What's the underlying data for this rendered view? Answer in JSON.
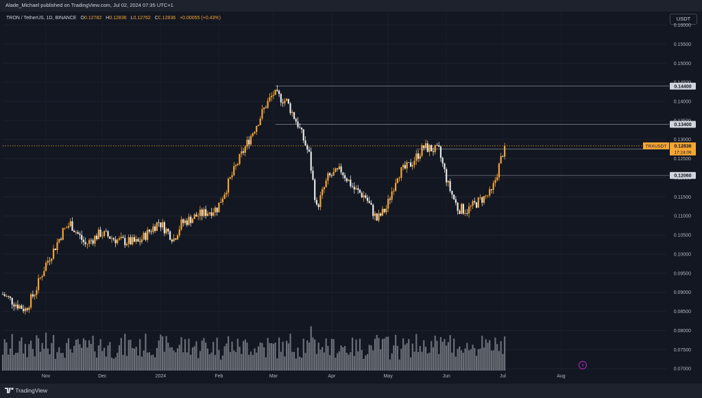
{
  "header": {
    "publisher_line": "Alade_Michael published on TradingView.com, Jul 02, 2024 07:35 UTC+1"
  },
  "legend": {
    "symbol": "TRON / TetherUS, 1D, BINANCE",
    "o_label": "O",
    "o_value": "0.12782",
    "h_label": "H",
    "h_value": "0.12836",
    "l_label": "L",
    "l_value": "0.12762",
    "c_label": "C",
    "c_value": "0.12836",
    "change": "+0.00055 (+0.43%)"
  },
  "currency_button": "USDT",
  "footer": {
    "brand": "TradingView"
  },
  "colors": {
    "background": "#131722",
    "up": "#f7a634",
    "down": "#e8e8e8",
    "volume": "#8a8d96",
    "level_line": "#787b86",
    "price_line": "#f7a634"
  },
  "chart_data": {
    "type": "candlestick",
    "symbol": "TRXUSDT",
    "timeframe": "1D",
    "exchange": "BINANCE",
    "y_axis": {
      "range": [
        0.0695,
        0.1635
      ],
      "ticks": [
        "0.16000",
        "0.15500",
        "0.15000",
        "0.14500",
        "0.14000",
        "0.13500",
        "0.13000",
        "0.12500",
        "0.12000",
        "0.11500",
        "0.11000",
        "0.10500",
        "0.10000",
        "0.09500",
        "0.09000",
        "0.08500",
        "0.08000",
        "0.07500",
        "0.07000"
      ]
    },
    "x_axis": {
      "range": [
        "2023-10-09",
        "2024-09-26"
      ],
      "ticks": [
        {
          "date": "2023-11-01",
          "label": "Nov"
        },
        {
          "date": "2023-12-01",
          "label": "Dec"
        },
        {
          "date": "2024-01-01",
          "label": "2024"
        },
        {
          "date": "2024-02-01",
          "label": "Feb"
        },
        {
          "date": "2024-03-01",
          "label": "Mar"
        },
        {
          "date": "2024-04-01",
          "label": "Apr"
        },
        {
          "date": "2024-05-01",
          "label": "May"
        },
        {
          "date": "2024-06-01",
          "label": "Jun"
        },
        {
          "date": "2024-07-01",
          "label": "Jul"
        },
        {
          "date": "2024-08-01",
          "label": "Aug"
        }
      ]
    },
    "series_start": "2023-10-09",
    "series_end": "2024-07-02",
    "close_path": [
      {
        "date": "2023-10-09",
        "close": 0.0895
      },
      {
        "date": "2023-10-16",
        "close": 0.087
      },
      {
        "date": "2023-10-21",
        "close": 0.0855
      },
      {
        "date": "2023-10-26",
        "close": 0.09
      },
      {
        "date": "2023-11-01",
        "close": 0.0975
      },
      {
        "date": "2023-11-05",
        "close": 0.101
      },
      {
        "date": "2023-11-10",
        "close": 0.106
      },
      {
        "date": "2023-11-14",
        "close": 0.108
      },
      {
        "date": "2023-11-22",
        "close": 0.1025
      },
      {
        "date": "2023-11-30",
        "close": 0.1055
      },
      {
        "date": "2023-12-10",
        "close": 0.1035
      },
      {
        "date": "2023-12-20",
        "close": 0.103
      },
      {
        "date": "2023-12-31",
        "close": 0.1085
      },
      {
        "date": "2024-01-08",
        "close": 0.104
      },
      {
        "date": "2024-01-12",
        "close": 0.108
      },
      {
        "date": "2024-01-20",
        "close": 0.11
      },
      {
        "date": "2024-01-31",
        "close": 0.112
      },
      {
        "date": "2024-02-12",
        "close": 0.125
      },
      {
        "date": "2024-02-20",
        "close": 0.133
      },
      {
        "date": "2024-02-26",
        "close": 0.139
      },
      {
        "date": "2024-03-01",
        "close": 0.142
      },
      {
        "date": "2024-03-08",
        "close": 0.14
      },
      {
        "date": "2024-03-14",
        "close": 0.134
      },
      {
        "date": "2024-03-20",
        "close": 0.126
      },
      {
        "date": "2024-03-24",
        "close": 0.112
      },
      {
        "date": "2024-03-30",
        "close": 0.12
      },
      {
        "date": "2024-04-06",
        "close": 0.122
      },
      {
        "date": "2024-04-13",
        "close": 0.117
      },
      {
        "date": "2024-04-19",
        "close": 0.115
      },
      {
        "date": "2024-04-25",
        "close": 0.109
      },
      {
        "date": "2024-04-30",
        "close": 0.112
      },
      {
        "date": "2024-05-06",
        "close": 0.121
      },
      {
        "date": "2024-05-12",
        "close": 0.123
      },
      {
        "date": "2024-05-20",
        "close": 0.128
      },
      {
        "date": "2024-05-28",
        "close": 0.127
      },
      {
        "date": "2024-06-02",
        "close": 0.118
      },
      {
        "date": "2024-06-07",
        "close": 0.112
      },
      {
        "date": "2024-06-12",
        "close": 0.1115
      },
      {
        "date": "2024-06-20",
        "close": 0.1145
      },
      {
        "date": "2024-06-25",
        "close": 0.116
      },
      {
        "date": "2024-07-02",
        "close": 0.12836
      }
    ],
    "volume_scale": [
      0,
      1
    ],
    "last_price_tag": {
      "symbol": "TRXUSDT",
      "price": "0.12836",
      "countdown": "17:24:09"
    },
    "horizontal_levels": [
      {
        "price": "0.14400",
        "from": "2024-03-02"
      },
      {
        "price": "0.13400",
        "from": "2024-03-02"
      },
      {
        "price": "0.12750",
        "from": "2024-05-16"
      },
      {
        "price": "0.12060",
        "from": "2024-05-31"
      }
    ]
  }
}
